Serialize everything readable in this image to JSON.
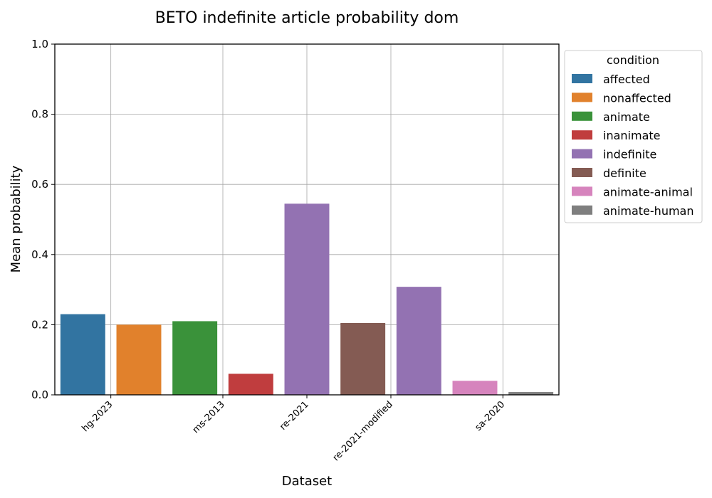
{
  "chart_data": {
    "type": "bar",
    "title": "BETO indefinite article probability dom",
    "xlabel": "Dataset",
    "ylabel": "Mean probability",
    "ylim": [
      0,
      1.0
    ],
    "yticks": [
      0.0,
      0.2,
      0.4,
      0.6,
      0.8,
      1.0
    ],
    "ytick_labels": [
      "0.0",
      "0.2",
      "0.4",
      "0.6",
      "0.8",
      "1.0"
    ],
    "grid": true,
    "legend": {
      "title": "condition",
      "placement": "outside-right-top",
      "entries": [
        {
          "label": "affected",
          "color": "#3274a1"
        },
        {
          "label": "nonaffected",
          "color": "#e1812c"
        },
        {
          "label": "animate",
          "color": "#3a923a"
        },
        {
          "label": "inanimate",
          "color": "#c03d3e"
        },
        {
          "label": "indefinite",
          "color": "#9372b2"
        },
        {
          "label": "definite",
          "color": "#845b53"
        },
        {
          "label": "animate-animal",
          "color": "#d684bd"
        },
        {
          "label": "animate-human",
          "color": "#7f7f7f"
        }
      ]
    },
    "x_tick_labels": [
      "hg-2023",
      "ms-2013",
      "re-2021",
      "re-2021-modified",
      "sa-2020"
    ],
    "bars": [
      {
        "dataset": "hg-2023",
        "condition": "affected",
        "value": 0.23
      },
      {
        "dataset": "hg-2023",
        "condition": "nonaffected",
        "value": 0.2
      },
      {
        "dataset": "ms-2013",
        "condition": "animate",
        "value": 0.21
      },
      {
        "dataset": "ms-2013",
        "condition": "inanimate",
        "value": 0.06
      },
      {
        "dataset": "re-2021",
        "condition": "indefinite",
        "value": 0.545
      },
      {
        "dataset": "re-2021-modified",
        "condition": "definite",
        "value": 0.205
      },
      {
        "dataset": "re-2021-modified",
        "condition": "indefinite",
        "value": 0.308
      },
      {
        "dataset": "sa-2020",
        "condition": "animate-animal",
        "value": 0.04
      },
      {
        "dataset": "sa-2020",
        "condition": "animate-human",
        "value": 0.008
      }
    ]
  }
}
